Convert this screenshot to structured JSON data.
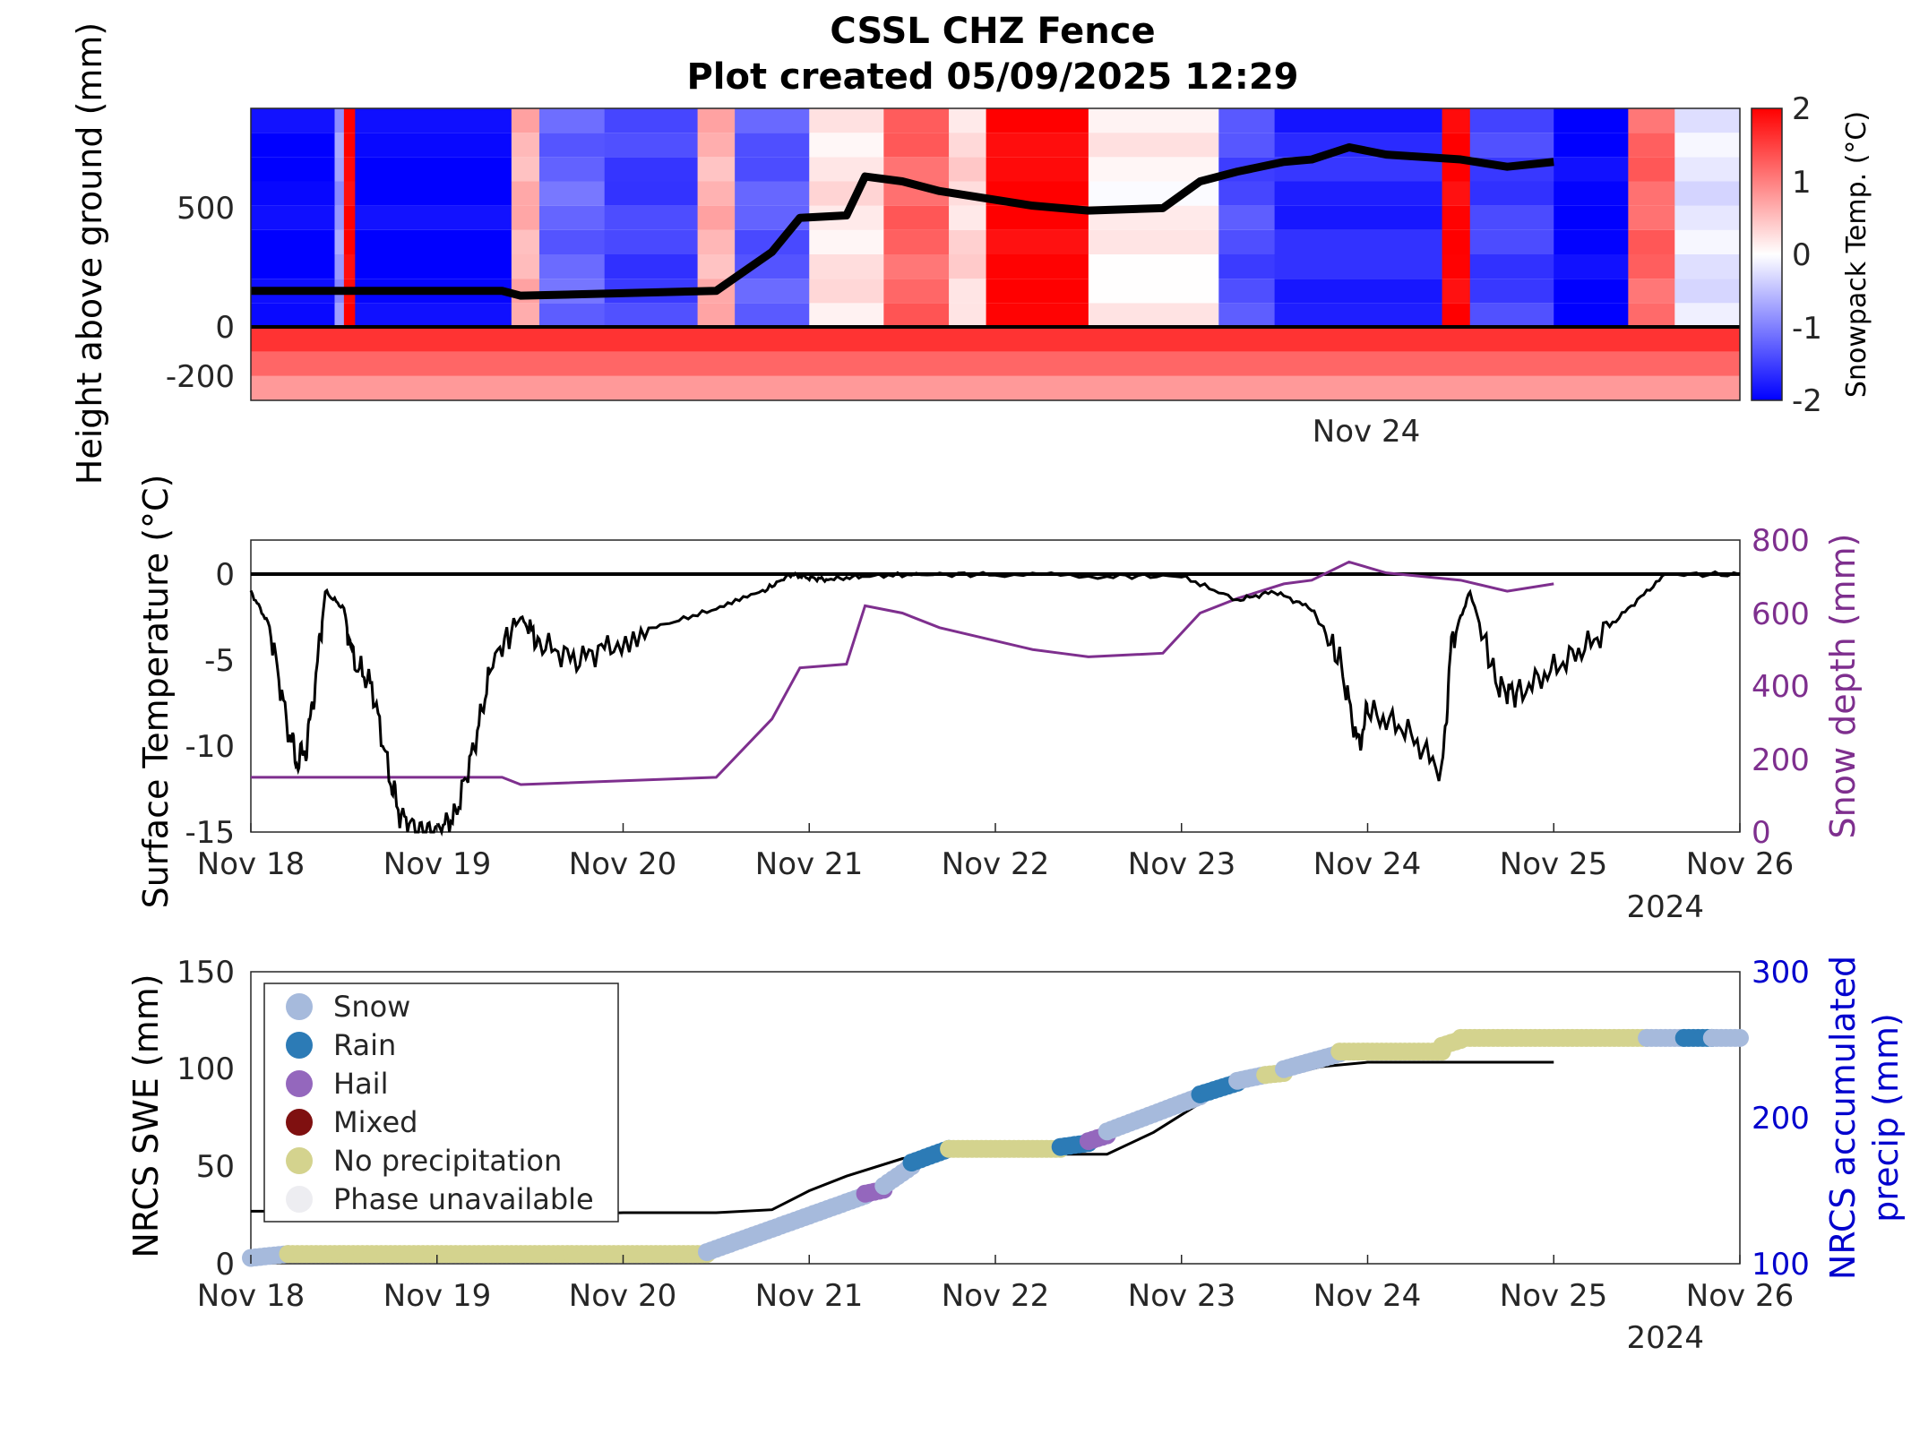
{
  "header": {
    "title": "CSSL CHZ Fence",
    "subtitle": "Plot created 05/09/2025 12:29"
  },
  "colors": {
    "snow_depth": "#7E2F8E",
    "accum_precip": "#0000CD",
    "snow": "#A6BADC",
    "rain": "#2C7BB6",
    "hail": "#9467BD",
    "mixed": "#7F1010",
    "no_precip": "#D4D38E",
    "unavailable": "#EDEDF1"
  },
  "chart_data": [
    {
      "type": "heatmap",
      "ylabel": "Height above ground (mm)",
      "yticks": [
        "500",
        "0",
        "-200"
      ],
      "xticks": [
        "Nov 24"
      ],
      "xrange_days": [
        18,
        26
      ],
      "ylim": [
        -300,
        900
      ],
      "colorbar": {
        "label": "Snowpack Temp. (°C)",
        "range": [
          -2,
          2
        ],
        "ticks": [
          "2",
          "1",
          "0",
          "-1",
          "-2"
        ]
      },
      "sensor_heights_mm": [
        -250,
        -150,
        -50,
        50,
        150,
        250,
        350,
        450,
        550,
        650,
        750,
        850
      ],
      "segments": [
        {
          "from": 18.0,
          "to": 18.45,
          "temp": -2.0
        },
        {
          "from": 18.45,
          "to": 18.5,
          "temp": -0.8
        },
        {
          "from": 18.5,
          "to": 18.56,
          "temp": 2.0
        },
        {
          "from": 18.56,
          "to": 19.4,
          "temp": -2.0
        },
        {
          "from": 19.4,
          "to": 19.55,
          "temp": 0.6
        },
        {
          "from": 19.55,
          "to": 19.9,
          "temp": -1.2
        },
        {
          "from": 19.9,
          "to": 20.4,
          "temp": -1.5
        },
        {
          "from": 20.4,
          "to": 20.6,
          "temp": 0.6
        },
        {
          "from": 20.6,
          "to": 21.0,
          "temp": -1.3
        },
        {
          "from": 21.0,
          "to": 21.4,
          "temp": 0.2
        },
        {
          "from": 21.4,
          "to": 21.75,
          "temp": 1.2
        },
        {
          "from": 21.75,
          "to": 21.95,
          "temp": 0.3
        },
        {
          "from": 21.95,
          "to": 22.5,
          "temp": 2.0
        },
        {
          "from": 22.5,
          "to": 23.2,
          "temp": 0.1
        },
        {
          "from": 23.2,
          "to": 23.5,
          "temp": -1.4
        },
        {
          "from": 23.5,
          "to": 24.4,
          "temp": -1.7
        },
        {
          "from": 24.4,
          "to": 24.55,
          "temp": 2.0
        },
        {
          "from": 24.55,
          "to": 25.0,
          "temp": -1.5
        },
        {
          "from": 25.0,
          "to": 25.4,
          "temp": -2.0
        },
        {
          "from": 25.4,
          "to": 25.65,
          "temp": 1.2
        },
        {
          "from": 25.65,
          "to": 26.0,
          "temp": -0.2
        }
      ],
      "soil_temp_c": [
        1.6,
        1.2,
        0.8
      ],
      "snow_depth_line_days": [
        18.0,
        19.35,
        19.45,
        20.5,
        20.8,
        20.95,
        21.2,
        21.3,
        21.5,
        21.7,
        22.2,
        22.35,
        22.5,
        22.9,
        23.1,
        23.3,
        23.55,
        23.7,
        23.9,
        24.1,
        24.5,
        24.75,
        25.0
      ],
      "snow_depth_line_mm": [
        150,
        150,
        130,
        150,
        310,
        450,
        460,
        620,
        600,
        560,
        500,
        490,
        480,
        490,
        600,
        640,
        680,
        690,
        740,
        710,
        690,
        660,
        680
      ]
    },
    {
      "type": "line",
      "ylabel": "Surface Temperature (°C)",
      "y2label": "Snow depth (mm)",
      "xticks": [
        "Nov 18",
        "Nov 19",
        "Nov 20",
        "Nov 21",
        "Nov 22",
        "Nov 23",
        "Nov 24",
        "Nov 25",
        "Nov 26"
      ],
      "xyear": "2024",
      "ylim": [
        -15,
        2
      ],
      "yticks": [
        "0",
        "-5",
        "-10",
        "-15"
      ],
      "y2lim": [
        0,
        800
      ],
      "y2ticks": [
        "800",
        "600",
        "400",
        "200",
        "0"
      ],
      "series": [
        {
          "x_days": [
            18.0,
            18.1,
            18.2,
            18.25,
            18.3,
            18.35,
            18.4,
            18.5,
            18.55,
            18.65,
            18.75,
            18.8,
            18.9,
            19.0,
            19.1,
            19.2,
            19.3,
            19.45,
            19.55,
            19.75,
            19.95,
            20.2,
            20.5,
            20.75,
            20.9,
            21.0,
            21.1,
            21.3,
            21.6,
            22.0,
            22.6,
            23.0,
            23.3,
            23.5,
            23.7,
            23.85,
            23.95,
            24.0,
            24.2,
            24.4,
            24.45,
            24.55,
            24.7,
            24.8,
            25.0,
            25.2,
            25.4,
            25.6,
            26.0
          ],
          "y": [
            -1.0,
            -3.0,
            -9.0,
            -11.0,
            -10.0,
            -6.0,
            -1.0,
            -2.0,
            -5.0,
            -6.5,
            -12.0,
            -14.0,
            -15.0,
            -15.0,
            -14.0,
            -10.0,
            -5.0,
            -2.5,
            -4.0,
            -5.0,
            -4.0,
            -3.0,
            -2.0,
            -1.0,
            0.0,
            -0.2,
            -0.3,
            -0.1,
            0.0,
            0.0,
            -0.1,
            -0.1,
            -1.5,
            -1.0,
            -2.0,
            -5.0,
            -10.0,
            -8.0,
            -9.0,
            -11.5,
            -4.0,
            -1.0,
            -6.5,
            -7.0,
            -5.5,
            -4.0,
            -2.0,
            0.0,
            0.0
          ]
        },
        {
          "name": "Snow depth (mm)",
          "x_days": [
            18.0,
            19.35,
            19.45,
            20.5,
            20.8,
            20.95,
            21.2,
            21.3,
            21.5,
            21.7,
            22.2,
            22.35,
            22.5,
            22.9,
            23.1,
            23.3,
            23.55,
            23.7,
            23.9,
            24.1,
            24.5,
            24.75,
            25.0
          ],
          "y": [
            150,
            150,
            130,
            150,
            310,
            450,
            460,
            620,
            600,
            560,
            500,
            490,
            480,
            490,
            600,
            640,
            680,
            690,
            740,
            710,
            690,
            660,
            680
          ]
        }
      ]
    },
    {
      "type": "scatter",
      "ylabel": "NRCS SWE (mm)",
      "y2label_line1": "NRCS accumulated",
      "y2label_line2": "precip (mm)",
      "xticks": [
        "Nov 18",
        "Nov 19",
        "Nov 20",
        "Nov 21",
        "Nov 22",
        "Nov 23",
        "Nov 24",
        "Nov 25",
        "Nov 26"
      ],
      "xyear": "2024",
      "ylim": [
        0,
        150
      ],
      "yticks": [
        "150",
        "100",
        "50",
        "0"
      ],
      "y2lim": [
        100,
        300
      ],
      "y2ticks": [
        "300",
        "200",
        "100"
      ],
      "legend": {
        "position": "top-left",
        "entries": [
          "Snow",
          "Rain",
          "Hail",
          "Mixed",
          "No precipitation",
          "Phase unavailable"
        ]
      },
      "accum_precip": {
        "x_days": [
          18.0,
          19.0,
          19.3,
          20.0,
          20.5,
          20.8,
          21.0,
          21.2,
          21.5,
          21.75,
          22.15,
          22.6,
          22.85,
          23.1,
          23.25,
          23.5,
          23.75,
          24.0,
          24.6,
          25.0
        ],
        "y": [
          136,
          136,
          132,
          135,
          135,
          137,
          150,
          160,
          172,
          177,
          175,
          175,
          190,
          210,
          220,
          227,
          235,
          238,
          238,
          238
        ]
      },
      "swe_segments": [
        {
          "from": 18.0,
          "to": 18.2,
          "y0": 3,
          "y1": 5,
          "phase": "snow"
        },
        {
          "from": 18.2,
          "to": 20.45,
          "y0": 5,
          "y1": 5,
          "phase": "no_precip"
        },
        {
          "from": 20.45,
          "to": 21.3,
          "y0": 6,
          "y1": 35,
          "phase": "snow"
        },
        {
          "from": 21.3,
          "to": 21.4,
          "y0": 36,
          "y1": 38,
          "phase": "hail"
        },
        {
          "from": 21.4,
          "to": 21.55,
          "y0": 40,
          "y1": 50,
          "phase": "snow"
        },
        {
          "from": 21.55,
          "to": 21.75,
          "y0": 52,
          "y1": 59,
          "phase": "rain"
        },
        {
          "from": 21.75,
          "to": 22.35,
          "y0": 59,
          "y1": 59,
          "phase": "no_precip"
        },
        {
          "from": 22.35,
          "to": 22.5,
          "y0": 60,
          "y1": 62,
          "phase": "rain"
        },
        {
          "from": 22.5,
          "to": 22.6,
          "y0": 63,
          "y1": 66,
          "phase": "hail"
        },
        {
          "from": 22.6,
          "to": 23.1,
          "y0": 68,
          "y1": 86,
          "phase": "snow"
        },
        {
          "from": 23.1,
          "to": 23.3,
          "y0": 87,
          "y1": 93,
          "phase": "rain"
        },
        {
          "from": 23.3,
          "to": 23.45,
          "y0": 94,
          "y1": 97,
          "phase": "snow"
        },
        {
          "from": 23.45,
          "to": 23.55,
          "y0": 97,
          "y1": 98,
          "phase": "no_precip"
        },
        {
          "from": 23.55,
          "to": 23.85,
          "y0": 100,
          "y1": 108,
          "phase": "snow"
        },
        {
          "from": 23.85,
          "to": 24.4,
          "y0": 109,
          "y1": 109,
          "phase": "no_precip"
        },
        {
          "from": 24.4,
          "to": 24.5,
          "y0": 112,
          "y1": 115,
          "phase": "no_precip"
        },
        {
          "from": 24.5,
          "to": 25.5,
          "y0": 116,
          "y1": 116,
          "phase": "no_precip"
        },
        {
          "from": 25.5,
          "to": 25.7,
          "y0": 116,
          "y1": 116,
          "phase": "snow"
        },
        {
          "from": 25.7,
          "to": 25.85,
          "y0": 116,
          "y1": 116,
          "phase": "rain"
        },
        {
          "from": 25.85,
          "to": 26.0,
          "y0": 116,
          "y1": 116,
          "phase": "snow"
        }
      ]
    }
  ]
}
